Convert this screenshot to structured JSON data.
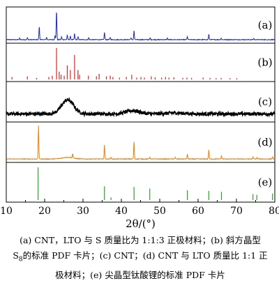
{
  "chart_data": {
    "type": "line",
    "xlabel": "2θ/(°)",
    "xlim": [
      10,
      80
    ],
    "x_ticks": [
      "10",
      "20",
      "30",
      "40",
      "50",
      "60",
      "70",
      "80"
    ],
    "panels": [
      {
        "label": "(a)",
        "style": "line",
        "color": "#1f2db4",
        "baseline": 0.05,
        "noise": 0.012,
        "peaks": [
          [
            13.5,
            0.05
          ],
          [
            15.5,
            0.06
          ],
          [
            18.6,
            0.45
          ],
          [
            20.5,
            0.08
          ],
          [
            22.7,
            0.14
          ],
          [
            23.1,
            1.0
          ],
          [
            24.4,
            0.1
          ],
          [
            25.9,
            0.16
          ],
          [
            26.7,
            0.12
          ],
          [
            27.8,
            0.2
          ],
          [
            28.7,
            0.1
          ],
          [
            31.5,
            0.07
          ],
          [
            35.6,
            0.25
          ],
          [
            37.1,
            0.08
          ],
          [
            42.5,
            0.06
          ],
          [
            43.3,
            0.3
          ],
          [
            47.5,
            0.06
          ],
          [
            52.0,
            0.05
          ],
          [
            57.2,
            0.1
          ],
          [
            62.8,
            0.18
          ],
          [
            66.0,
            0.05
          ],
          [
            74.5,
            0.04
          ]
        ]
      },
      {
        "label": "(b)",
        "style": "stick",
        "color": "#d62728",
        "peaks": [
          [
            11.5,
            0.08
          ],
          [
            15.5,
            0.1
          ],
          [
            17.9,
            0.05
          ],
          [
            21.1,
            0.08
          ],
          [
            22.0,
            0.12
          ],
          [
            23.1,
            1.0
          ],
          [
            23.8,
            0.25
          ],
          [
            24.3,
            0.15
          ],
          [
            25.1,
            0.12
          ],
          [
            25.9,
            0.45
          ],
          [
            26.7,
            0.3
          ],
          [
            27.8,
            0.78
          ],
          [
            28.7,
            0.3
          ],
          [
            29.1,
            0.15
          ],
          [
            31.4,
            0.12
          ],
          [
            33.5,
            0.1
          ],
          [
            34.2,
            0.18
          ],
          [
            36.1,
            0.1
          ],
          [
            37.1,
            0.12
          ],
          [
            37.8,
            0.08
          ],
          [
            39.5,
            0.06
          ],
          [
            41.3,
            0.08
          ],
          [
            42.7,
            0.15
          ],
          [
            44.0,
            0.06
          ],
          [
            45.1,
            0.08
          ],
          [
            46.0,
            0.06
          ],
          [
            47.8,
            0.1
          ],
          [
            48.8,
            0.07
          ],
          [
            50.5,
            0.06
          ],
          [
            51.5,
            0.08
          ],
          [
            52.4,
            0.06
          ],
          [
            53.7,
            0.07
          ],
          [
            56.0,
            0.05
          ],
          [
            57.1,
            0.06
          ],
          [
            58.3,
            0.05
          ],
          [
            61.3,
            0.06
          ],
          [
            63.1,
            0.05
          ],
          [
            64.7,
            0.04
          ],
          [
            66.0,
            0.05
          ],
          [
            68.3,
            0.04
          ],
          [
            70.1,
            0.04
          ]
        ]
      },
      {
        "label": "(c)",
        "style": "line",
        "color": "#000000",
        "baseline": 0.18,
        "noise": 0.05,
        "humps": [
          [
            26.0,
            0.42,
            2.2
          ],
          [
            43.0,
            0.1,
            2.5
          ],
          [
            54.0,
            0.03,
            3.0
          ]
        ]
      },
      {
        "label": "(d)",
        "style": "line",
        "color": "#e8820c",
        "baseline": 0.04,
        "noise": 0.01,
        "humps": [
          [
            26.0,
            0.05,
            2.0
          ]
        ],
        "peaks": [
          [
            18.4,
            1.0
          ],
          [
            27.3,
            0.13
          ],
          [
            35.6,
            0.42
          ],
          [
            37.3,
            0.06
          ],
          [
            43.3,
            0.52
          ],
          [
            47.4,
            0.06
          ],
          [
            54.0,
            0.05
          ],
          [
            57.2,
            0.14
          ],
          [
            62.8,
            0.28
          ],
          [
            66.1,
            0.09
          ],
          [
            74.3,
            0.06
          ],
          [
            75.4,
            0.05
          ],
          [
            79.4,
            0.07
          ]
        ]
      },
      {
        "label": "(e)",
        "style": "stick",
        "color": "#2ca02c",
        "peaks": [
          [
            18.3,
            1.0
          ],
          [
            35.6,
            0.42
          ],
          [
            37.3,
            0.08
          ],
          [
            43.3,
            0.4
          ],
          [
            47.4,
            0.35
          ],
          [
            57.2,
            0.3
          ],
          [
            62.8,
            0.28
          ],
          [
            66.1,
            0.25
          ],
          [
            74.3,
            0.18
          ],
          [
            75.3,
            0.16
          ],
          [
            79.4,
            0.2
          ]
        ]
      }
    ]
  },
  "caption": {
    "line1": "(a) CNT，LTO 与 S 质量比为 1:1:3 正极材料；(b)  斜方晶型",
    "line2_a": "S",
    "line2_sub": "8",
    "line2_b": "的标准 PDF 卡片；(c) CNT；(d) CNT 与 LTO 质量比  1:1  正",
    "line3": "极材料；(e)  尖晶型钛酸锂的标准 PDF 卡片"
  }
}
